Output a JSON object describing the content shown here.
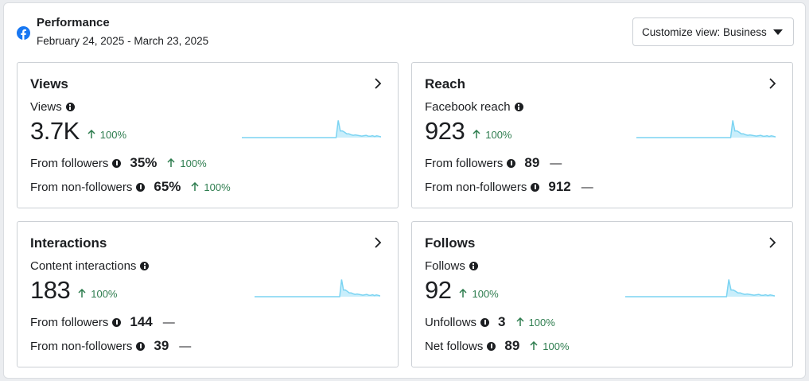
{
  "header": {
    "title": "Performance",
    "date_range": "February 24, 2025 - March 23, 2025",
    "customize_label": "Customize view: Business",
    "brand_color": "#1877f2"
  },
  "colors": {
    "positive": "#2e7d4f",
    "spark_line": "#7cd4f2",
    "spark_fill": "#c9eefb"
  },
  "cards": [
    {
      "title": "Views",
      "metric_label": "Views",
      "value": "3.7K",
      "change": "100%",
      "rows": [
        {
          "label": "From followers",
          "value": "35%",
          "change": "100%",
          "dash": ""
        },
        {
          "label": "From non-followers",
          "value": "65%",
          "change": "100%",
          "dash": ""
        }
      ]
    },
    {
      "title": "Reach",
      "metric_label": "Facebook reach",
      "value": "923",
      "change": "100%",
      "rows": [
        {
          "label": "From followers",
          "value": "89",
          "change": "",
          "dash": "—"
        },
        {
          "label": "From non-followers",
          "value": "912",
          "change": "",
          "dash": "—"
        }
      ]
    },
    {
      "title": "Interactions",
      "metric_label": "Content interactions",
      "value": "183",
      "change": "100%",
      "rows": [
        {
          "label": "From followers",
          "value": "144",
          "change": "",
          "dash": "—"
        },
        {
          "label": "From non-followers",
          "value": "39",
          "change": "",
          "dash": "—"
        }
      ]
    },
    {
      "title": "Follows",
      "metric_label": "Follows",
      "value": "92",
      "change": "100%",
      "rows": [
        {
          "label": "Unfollows",
          "value": "3",
          "change": "100%",
          "dash": ""
        },
        {
          "label": "Net follows",
          "value": "89",
          "change": "100%",
          "dash": ""
        }
      ]
    }
  ]
}
